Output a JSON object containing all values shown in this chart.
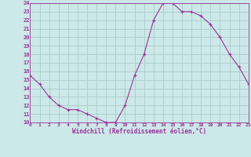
{
  "x": [
    0,
    1,
    2,
    3,
    4,
    5,
    6,
    7,
    8,
    9,
    10,
    11,
    12,
    13,
    14,
    15,
    16,
    17,
    18,
    19,
    20,
    21,
    22,
    23
  ],
  "y": [
    15.5,
    14.5,
    13.0,
    12.0,
    11.5,
    11.5,
    11.0,
    10.5,
    10.0,
    10.0,
    12.0,
    15.5,
    18.0,
    22.0,
    24.0,
    24.0,
    23.0,
    23.0,
    22.5,
    21.5,
    20.0,
    18.0,
    16.5,
    14.5
  ],
  "line_color": "#993399",
  "marker": "+",
  "bg_color": "#cce8e8",
  "grid_color": "#aacccc",
  "xlabel": "Windchill (Refroidissement éolien,°C)",
  "tick_color": "#993399",
  "ylim": [
    10,
    24
  ],
  "xlim": [
    0,
    23
  ],
  "yticks": [
    10,
    11,
    12,
    13,
    14,
    15,
    16,
    17,
    18,
    19,
    20,
    21,
    22,
    23,
    24
  ],
  "xticks": [
    0,
    1,
    2,
    3,
    4,
    5,
    6,
    7,
    8,
    9,
    10,
    11,
    12,
    13,
    14,
    15,
    16,
    17,
    18,
    19,
    20,
    21,
    22,
    23
  ]
}
